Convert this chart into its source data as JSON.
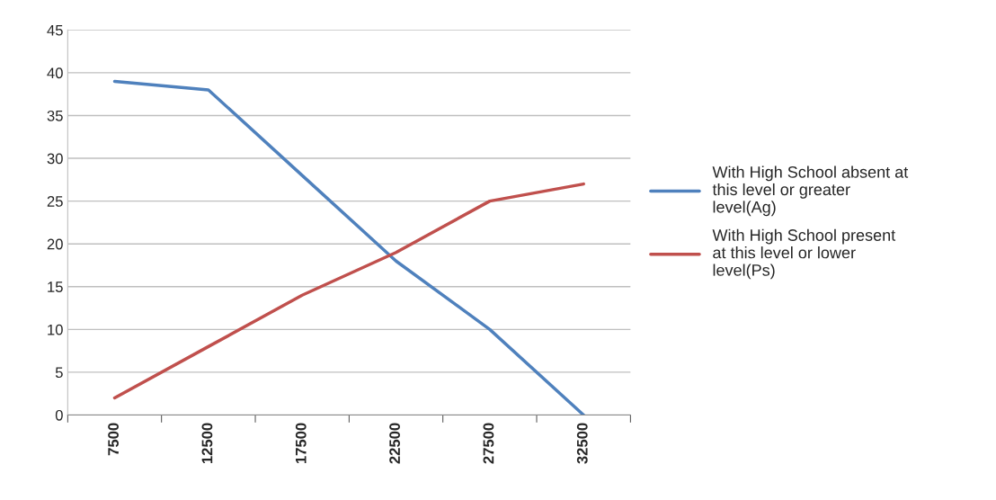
{
  "chart_data": {
    "type": "line",
    "categories": [
      "7500",
      "12500",
      "17500",
      "22500",
      "27500",
      "32500"
    ],
    "series": [
      {
        "name": "With High School absent at\nthis level or greater\nlevel(Ag)",
        "color": "#4f81bd",
        "values": [
          39,
          38,
          28,
          18,
          10,
          0
        ]
      },
      {
        "name": "With High School present\nat this level or lower\nlevel(Ps)",
        "color": "#c0504d",
        "values": [
          2,
          8,
          14,
          19,
          25,
          27
        ]
      }
    ],
    "ylim": [
      0,
      45
    ],
    "yticks": [
      0,
      5,
      10,
      15,
      20,
      25,
      30,
      35,
      40,
      45
    ],
    "grid": "y",
    "legend": "right",
    "marker": "none",
    "line_style": "solid"
  }
}
